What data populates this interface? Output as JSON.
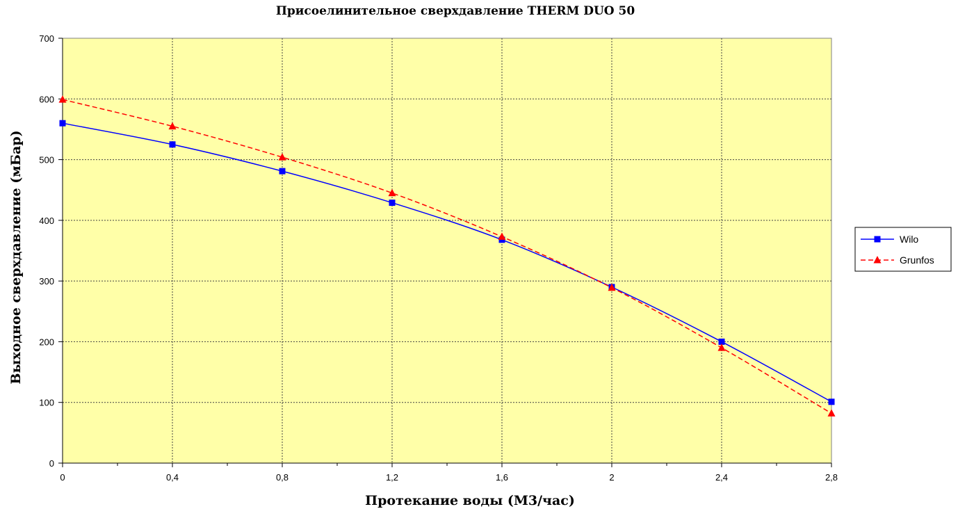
{
  "chart_data": {
    "type": "line",
    "title": "Присоелинительное сверхдавление THERM DUO 50",
    "xlabel": "Протекание воды (М3/час)",
    "ylabel": "Выходное сверхдавление (мБар)",
    "x": [
      0,
      0.4,
      0.8,
      1.2,
      1.6,
      2,
      2.4,
      2.8
    ],
    "x_tick_labels": [
      "0",
      "0,4",
      "0,8",
      "1,2",
      "1,6",
      "2",
      "2,4",
      "2,8"
    ],
    "y_tick_labels": [
      "0",
      "100",
      "200",
      "300",
      "400",
      "500",
      "600",
      "700"
    ],
    "xlim": [
      0,
      2.8
    ],
    "ylim": [
      0,
      700
    ],
    "grid": true,
    "plot_background": "#ffffa8",
    "legend_position": "right",
    "series": [
      {
        "name": "Wilo",
        "values": [
          560,
          525,
          481,
          429,
          368,
          290,
          200,
          101
        ],
        "color": "#0000ff",
        "marker": "square",
        "line_style": "solid"
      },
      {
        "name": "Grunfos",
        "values": [
          599,
          555,
          504,
          445,
          373,
          289,
          190,
          82
        ],
        "color": "#ff0000",
        "marker": "triangle",
        "line_style": "dashed"
      }
    ]
  }
}
